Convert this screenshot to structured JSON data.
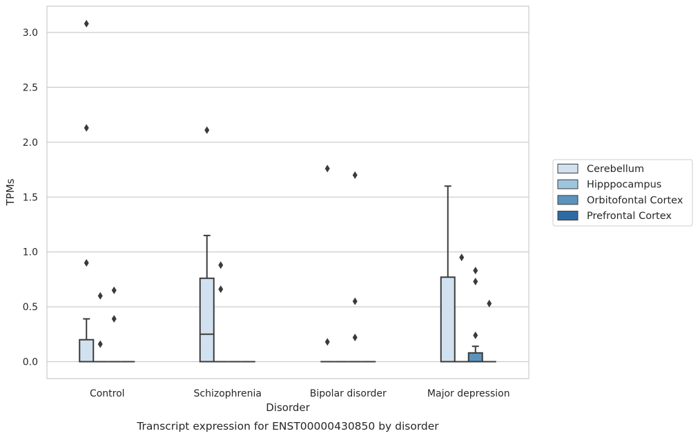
{
  "chart_data": {
    "type": "box",
    "title": "",
    "caption": "Transcript expression for ENST00000430850 by disorder",
    "xlabel": "Disorder",
    "ylabel": "TPMs",
    "ylim": [
      -0.15,
      3.25
    ],
    "yticks": [
      0.0,
      0.5,
      1.0,
      1.5,
      2.0,
      2.5,
      3.0
    ],
    "ytick_labels": [
      "0.0",
      "0.5",
      "1.0",
      "1.5",
      "2.0",
      "2.5",
      "3.0"
    ],
    "grid": "horizontal",
    "legend_position": "right",
    "categories": [
      "Control",
      "Schizophrenia",
      "Bipolar disorder",
      "Major depression"
    ],
    "series": [
      {
        "name": "Cerebellum",
        "color": "#d1e1f0",
        "boxes": [
          {
            "q1": 0.0,
            "median": 0.0,
            "q3": 0.2,
            "whisker_low": 0.0,
            "whisker_high": 0.39,
            "outliers": [
              0.9,
              2.13,
              3.08
            ]
          },
          {
            "q1": 0.0,
            "median": 0.25,
            "q3": 0.76,
            "whisker_low": 0.0,
            "whisker_high": 1.15,
            "outliers": [
              2.11
            ]
          },
          {
            "q1": 0.0,
            "median": 0.0,
            "q3": 0.0,
            "whisker_low": 0.0,
            "whisker_high": 0.0,
            "outliers": [
              0.18,
              1.76
            ]
          },
          {
            "q1": 0.0,
            "median": 0.0,
            "q3": 0.77,
            "whisker_low": 0.0,
            "whisker_high": 1.6,
            "outliers": []
          }
        ]
      },
      {
        "name": "Hipppocampus",
        "color": "#9fc4dd",
        "boxes": [
          {
            "q1": 0.0,
            "median": 0.0,
            "q3": 0.0,
            "whisker_low": 0.0,
            "whisker_high": 0.0,
            "outliers": [
              0.16,
              0.6
            ]
          },
          {
            "q1": 0.0,
            "median": 0.0,
            "q3": 0.0,
            "whisker_low": 0.0,
            "whisker_high": 0.0,
            "outliers": [
              0.66,
              0.88
            ]
          },
          {
            "q1": 0.0,
            "median": 0.0,
            "q3": 0.0,
            "whisker_low": 0.0,
            "whisker_high": 0.0,
            "outliers": []
          },
          {
            "q1": 0.0,
            "median": 0.0,
            "q3": 0.0,
            "whisker_low": 0.0,
            "whisker_high": 0.0,
            "outliers": [
              0.95
            ]
          }
        ]
      },
      {
        "name": "Orbitofontal Cortex",
        "color": "#5b93bd",
        "boxes": [
          {
            "q1": 0.0,
            "median": 0.0,
            "q3": 0.0,
            "whisker_low": 0.0,
            "whisker_high": 0.0,
            "outliers": [
              0.39,
              0.65
            ]
          },
          {
            "q1": 0.0,
            "median": 0.0,
            "q3": 0.0,
            "whisker_low": 0.0,
            "whisker_high": 0.0,
            "outliers": []
          },
          {
            "q1": 0.0,
            "median": 0.0,
            "q3": 0.0,
            "whisker_low": 0.0,
            "whisker_high": 0.0,
            "outliers": [
              0.22,
              0.55,
              1.7
            ]
          },
          {
            "q1": 0.0,
            "median": 0.0,
            "q3": 0.08,
            "whisker_low": 0.0,
            "whisker_high": 0.14,
            "outliers": [
              0.24,
              0.73,
              0.83
            ]
          }
        ]
      },
      {
        "name": "Prefrontal Cortex",
        "color": "#2e6ba5",
        "boxes": [
          {
            "q1": 0.0,
            "median": 0.0,
            "q3": 0.0,
            "whisker_low": 0.0,
            "whisker_high": 0.0,
            "outliers": []
          },
          {
            "q1": 0.0,
            "median": 0.0,
            "q3": 0.0,
            "whisker_low": 0.0,
            "whisker_high": 0.0,
            "outliers": []
          },
          {
            "q1": 0.0,
            "median": 0.0,
            "q3": 0.0,
            "whisker_low": 0.0,
            "whisker_high": 0.0,
            "outliers": []
          },
          {
            "q1": 0.0,
            "median": 0.0,
            "q3": 0.0,
            "whisker_low": 0.0,
            "whisker_high": 0.0,
            "outliers": [
              0.53
            ]
          }
        ]
      }
    ]
  }
}
